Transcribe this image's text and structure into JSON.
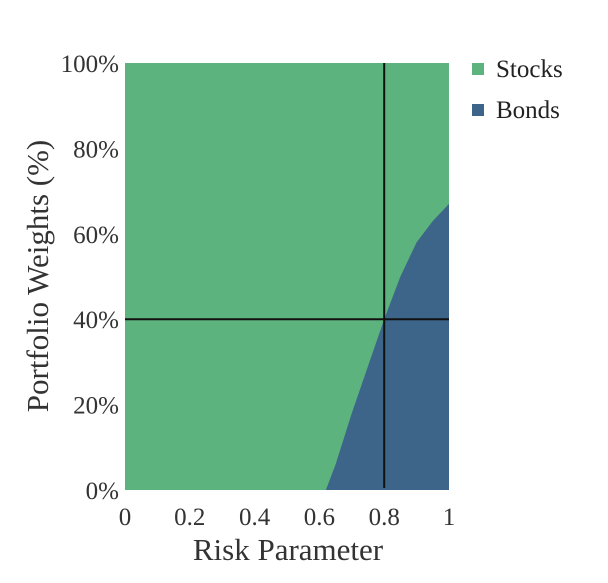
{
  "chart_data": {
    "type": "area",
    "stacked": true,
    "x": [
      0.62,
      0.65,
      0.7,
      0.75,
      0.8,
      0.85,
      0.9,
      0.95,
      1.0
    ],
    "series": [
      {
        "name": "Stocks",
        "color": "#5db37e",
        "values": [
          100,
          94,
          82,
          65,
          60,
          48,
          42,
          38,
          33
        ]
      },
      {
        "name": "Bonds",
        "color": "#3d6489",
        "values": [
          0,
          6,
          18,
          29,
          40,
          50,
          58,
          63,
          67
        ]
      }
    ],
    "bond_boundary": [
      [
        0.62,
        0
      ],
      [
        0.65,
        6
      ],
      [
        0.7,
        18
      ],
      [
        0.75,
        29
      ],
      [
        0.8,
        40
      ],
      [
        0.85,
        50
      ],
      [
        0.9,
        58
      ],
      [
        0.95,
        63
      ],
      [
        1.0,
        67
      ]
    ],
    "xlabel": "Risk Parameter",
    "ylabel": "Portfolio Weights (%)",
    "xlim": [
      0,
      1
    ],
    "ylim": [
      0,
      100
    ],
    "xticks": [
      0,
      0.2,
      0.4,
      0.6,
      0.8,
      1
    ],
    "xtick_labels": [
      "0",
      "0.2",
      "0.4",
      "0.6",
      "0.8",
      "1"
    ],
    "yticks": [
      0,
      20,
      40,
      60,
      80,
      100
    ],
    "ytick_labels": [
      "0%",
      "20%",
      "40%",
      "60%",
      "80%",
      "100%"
    ],
    "reference_lines": {
      "x": 0.8,
      "y": 40,
      "color": "#111111"
    },
    "legend_position": "top-right",
    "grid": false
  }
}
